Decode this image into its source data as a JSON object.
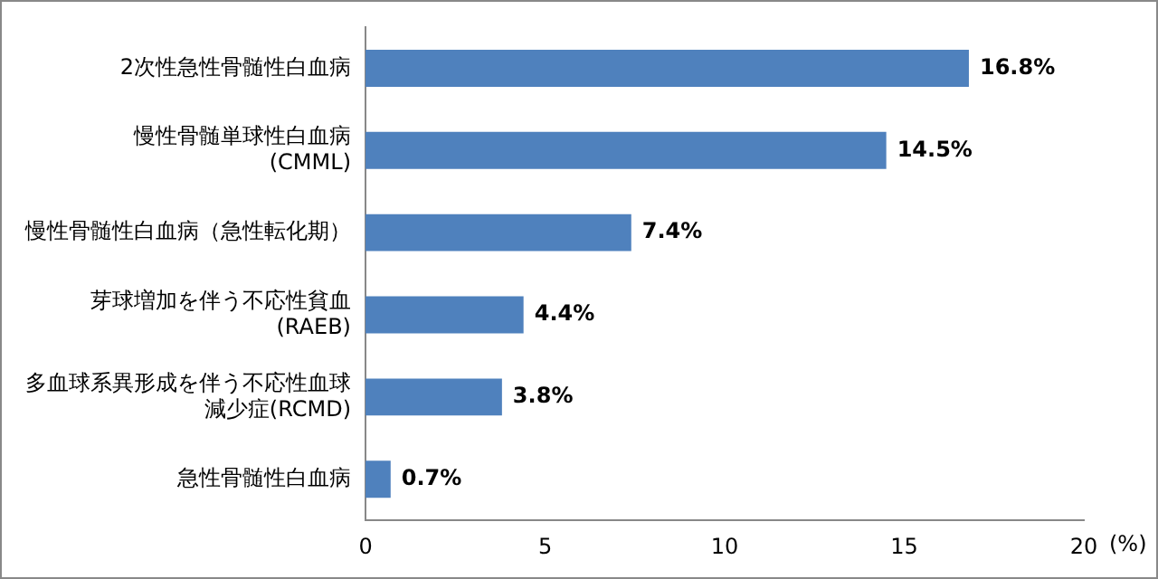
{
  "chart_data": {
    "type": "bar",
    "orientation": "horizontal",
    "categories": [
      "2次性急性骨髄性白血病",
      "慢性骨髄単球性白血病(CMML)",
      "慢性骨髄性白血病（急性転化期）",
      "芽球増加を伴う不応性貧血(RAEB)",
      "多血球系異形成を伴う不応性血球減少症(RCMD)",
      "急性骨髄性白血病"
    ],
    "values": [
      16.8,
      14.5,
      7.4,
      4.4,
      3.8,
      0.7
    ],
    "value_labels": [
      "16.8%",
      "14.5%",
      "7.4%",
      "4.4%",
      "3.8%",
      "0.7%"
    ],
    "color": "#4f81bd",
    "xlim": [
      0,
      20
    ],
    "xticks": [
      0,
      5,
      10,
      15,
      20
    ],
    "xlabel": "(%)",
    "grid": false,
    "legend": false
  }
}
